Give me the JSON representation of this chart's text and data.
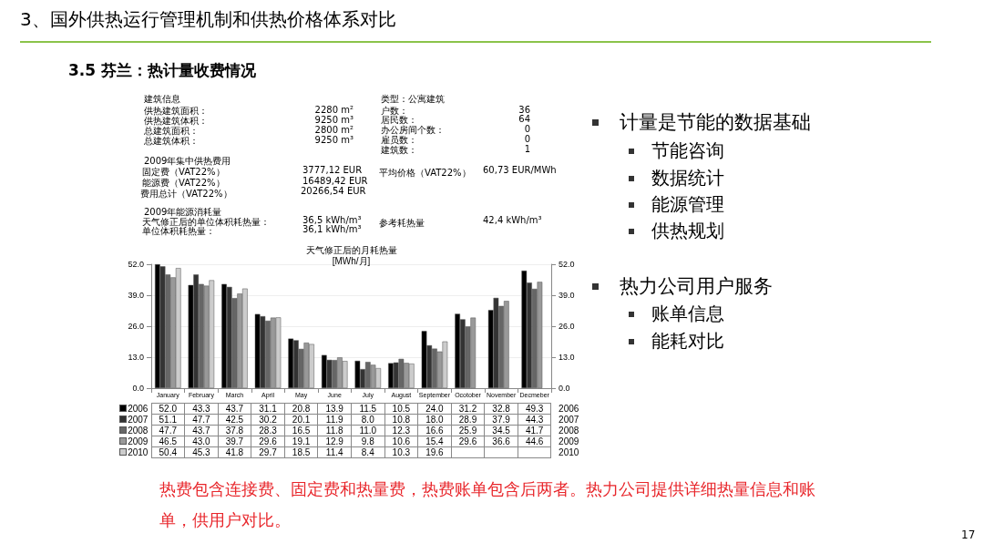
{
  "chart_data": {
    "type": "bar",
    "title": "天气修正后的月耗热量",
    "subtitle": "[MWh/月]",
    "categories": [
      "January",
      "February",
      "March",
      "April",
      "May",
      "June",
      "July",
      "August",
      "September",
      "Ocotober",
      "November",
      "Decmeber"
    ],
    "series": [
      {
        "name": "2006",
        "color": "#000000",
        "values": [
          52.0,
          43.3,
          43.7,
          31.1,
          20.8,
          13.9,
          11.5,
          10.5,
          24.0,
          31.2,
          32.8,
          49.3
        ],
        "value_labels": [
          "52.0",
          "43.3",
          "43.7",
          "31.1",
          "20.8",
          "13.9",
          "11.5",
          "10.5",
          "24.0",
          "31.2",
          "32.8",
          "49.3"
        ]
      },
      {
        "name": "2007",
        "color": "#333333",
        "values": [
          51.1,
          47.7,
          42.5,
          30.2,
          20.1,
          11.9,
          8.0,
          10.8,
          18.0,
          28.9,
          37.9,
          44.3
        ],
        "value_labels": [
          "51.1",
          "47.7",
          "42.5",
          "30.2",
          "20.1",
          "11.9",
          "8.0",
          "10.8",
          "18.0",
          "28.9",
          "37.9",
          "44.3"
        ]
      },
      {
        "name": "2008",
        "color": "#666666",
        "values": [
          47.7,
          43.7,
          37.8,
          28.3,
          16.5,
          11.8,
          11.0,
          12.3,
          16.6,
          25.9,
          34.5,
          41.7
        ],
        "value_labels": [
          "47.7",
          "43.7",
          "37.8",
          "28.3",
          "16.5",
          "11.8",
          "11.0",
          "12.3",
          "16.6",
          "25.9",
          "34.5",
          "41.7"
        ]
      },
      {
        "name": "2009",
        "color": "#999999",
        "values": [
          46.5,
          43.0,
          39.7,
          29.6,
          19.1,
          12.9,
          9.8,
          10.6,
          15.4,
          29.6,
          36.6,
          44.6
        ],
        "value_labels": [
          "46.5",
          "43.0",
          "39.7",
          "29.6",
          "19.1",
          "12.9",
          "9.8",
          "10.6",
          "15.4",
          "29.6",
          "36.6",
          "44.6"
        ]
      },
      {
        "name": "2010",
        "color": "#cccccc",
        "values": [
          50.4,
          45.3,
          41.8,
          29.7,
          18.5,
          11.4,
          8.4,
          10.3,
          19.6,
          null,
          null,
          null
        ],
        "value_labels": [
          "50.4",
          "45.3",
          "41.8",
          "29.7",
          "18.5",
          "11.4",
          "8.4",
          "10.3",
          "19.6",
          null,
          null,
          null
        ]
      }
    ],
    "legend": "bottom left",
    "ylim": [
      0,
      52
    ],
    "yticks": [
      {
        "value": 0,
        "label": "0.0"
      },
      {
        "value": 13,
        "label": "13.0"
      },
      {
        "value": 26,
        "label": "26.0"
      },
      {
        "value": 39,
        "label": "39.0"
      },
      {
        "value": 52,
        "label": "52.0"
      }
    ],
    "y2lim": [
      0,
      52
    ],
    "y2ticks": [
      {
        "value": 0,
        "label": "0.0"
      },
      {
        "value": 13,
        "label": "13.0"
      },
      {
        "value": 26,
        "label": "26.0"
      },
      {
        "value": 39,
        "label": "39.0"
      },
      {
        "value": 52,
        "label": "52.0"
      }
    ],
    "grid": "y",
    "annotations": [
      "3、国外供热运行管理机制和供热价格体系对比",
      "3.5 芬兰：热计量收费情况",
      "建筑信息",
      "供热建筑面积：",
      "2280 m²",
      "供热建筑体积：",
      "9250 m³",
      "总建筑面积：",
      "2800 m²",
      "总建筑体积：",
      "9250 m³",
      "类型：公寓建筑",
      "户数：",
      "36",
      "居民数：",
      "64",
      "办公房间个数：",
      "0",
      "雇员数：",
      "0",
      "建筑数：",
      "1",
      "2009年集中供热费用",
      "固定费（VAT22%）",
      "3777,12 EUR",
      "能源费（VAT22%）",
      "16489,42 EUR",
      "费用总计（VAT22%）",
      "20266,54 EUR",
      "平均价格（VAT22%）",
      "60,73 EUR/MWh",
      "2009年能源消耗量",
      "天气修正后的单位体积耗热量：",
      "36,5 kWh/m³",
      "单位体积耗热量：",
      "36,1 kWh/m³",
      "参考耗热量",
      "42,4 kWh/m³",
      "计量是节能的数据基础",
      "节能咨询",
      "数据统计",
      "能源管理",
      "供热规划",
      "热力公司用户服务",
      "账单信息",
      "能耗对比",
      "热费包含连接费、固定费和热量费，热费账单包含后两者。热力公司提供详细热量信息和账单，供用户对比。",
      "17"
    ]
  }
}
